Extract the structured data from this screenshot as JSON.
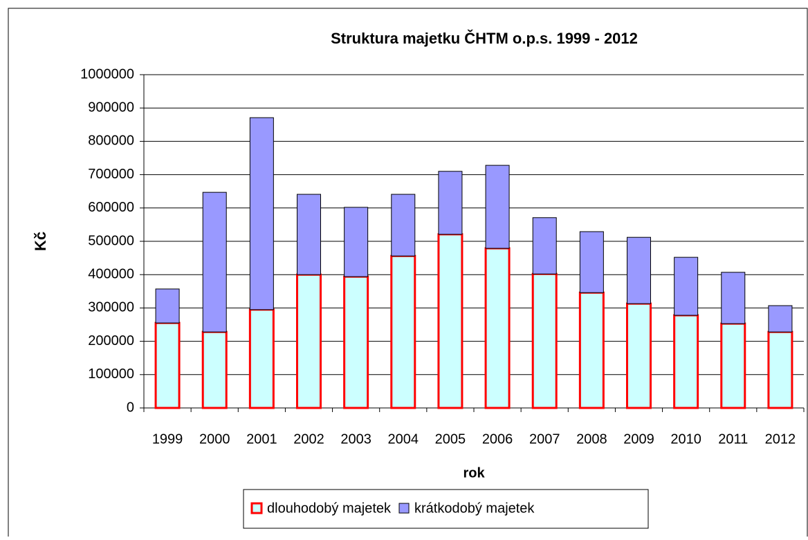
{
  "chart_data": {
    "type": "stacked_bar",
    "title": "Struktura majetku ČHTM o.p.s. 1999 - 2012",
    "x_label": "rok",
    "y_label": "Kč",
    "categories": [
      "1999",
      "2000",
      "2001",
      "2002",
      "2003",
      "2004",
      "2005",
      "2006",
      "2007",
      "2008",
      "2009",
      "2010",
      "2011",
      "2012"
    ],
    "series": [
      {
        "name": "dlouhodobý majetek",
        "color": "#ccffff",
        "edge": "#ff0000",
        "values": [
          255000,
          228000,
          295000,
          400000,
          394000,
          456000,
          521000,
          479000,
          402000,
          346000,
          313000,
          278000,
          253000,
          228000
        ]
      },
      {
        "name": "krátkodobý majetek",
        "color": "#9999ff",
        "edge": "#000000",
        "values": [
          102000,
          419000,
          576000,
          241000,
          208000,
          185000,
          189000,
          249000,
          169000,
          183000,
          199000,
          174000,
          154000,
          79000
        ]
      }
    ],
    "ylim": [
      0,
      1000000
    ],
    "yticks": [
      0,
      100000,
      200000,
      300000,
      400000,
      500000,
      600000,
      700000,
      800000,
      900000,
      1000000
    ],
    "grid": true,
    "legend": "bottom"
  }
}
